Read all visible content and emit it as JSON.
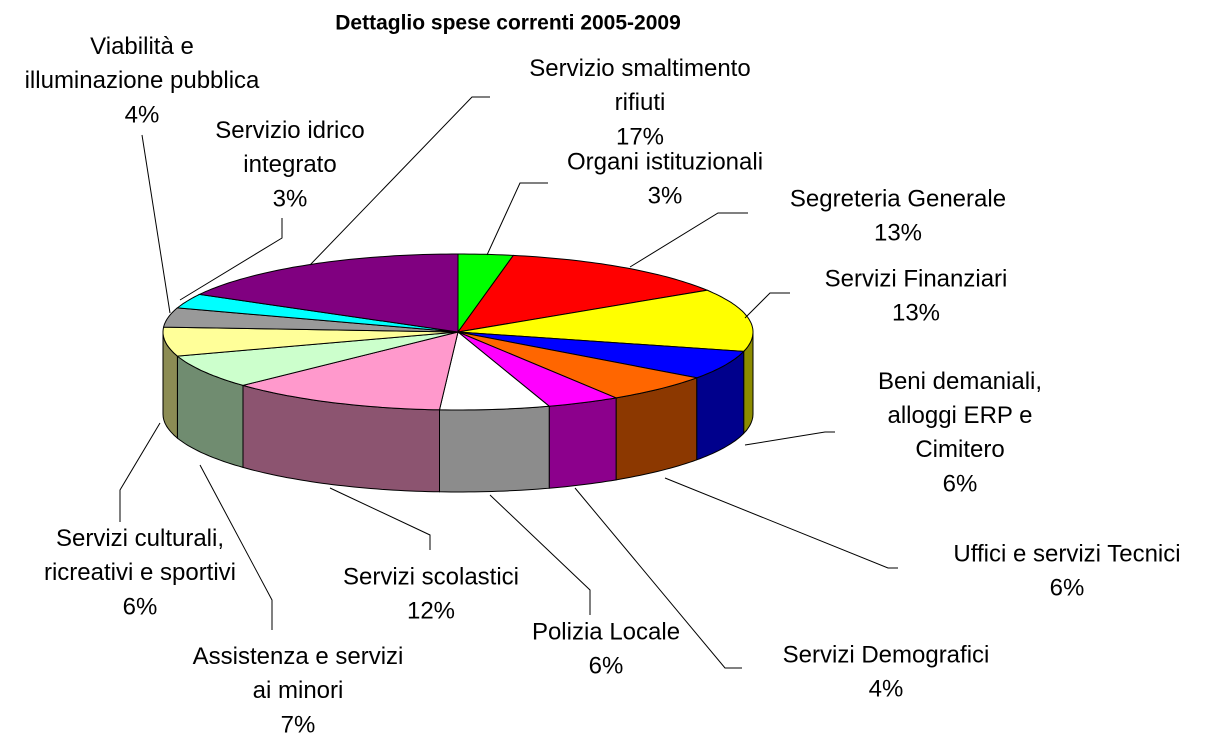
{
  "chart_data": {
    "type": "pie3d",
    "title": "Dettaglio spese correnti 2005-2009",
    "categories": [
      "Organi istituzionali",
      "Segreteria Generale",
      "Servizi Finanziari",
      "Beni demaniali,\nalloggi ERP e\nCimitero",
      "Uffici e servizi Tecnici",
      "Servizi Demografici",
      "Polizia Locale",
      "Servizi scolastici",
      "Assistenza e servizi\nai minori",
      "Servizi culturali,\nricreativi e sportivi",
      "Viabilità e\nilluminazione pubblica",
      "Servizio idrico\nintegrato",
      "Servizio smaltimento\nrifiuti"
    ],
    "values": [
      3,
      13,
      13,
      6,
      6,
      4,
      6,
      12,
      7,
      6,
      4,
      3,
      17
    ],
    "value_labels": [
      "3%",
      "13%",
      "13%",
      "6%",
      "6%",
      "4%",
      "6%",
      "12%",
      "7%",
      "6%",
      "4%",
      "3%",
      "17%"
    ],
    "colors": [
      "#00ff00",
      "#ff0000",
      "#ffff00",
      "#0000ff",
      "#ff6600",
      "#ff00ff",
      "#ffffff",
      "#ff99cc",
      "#ccffcc",
      "#ffff99",
      "#999999",
      "#00ffff",
      "#800080"
    ]
  }
}
